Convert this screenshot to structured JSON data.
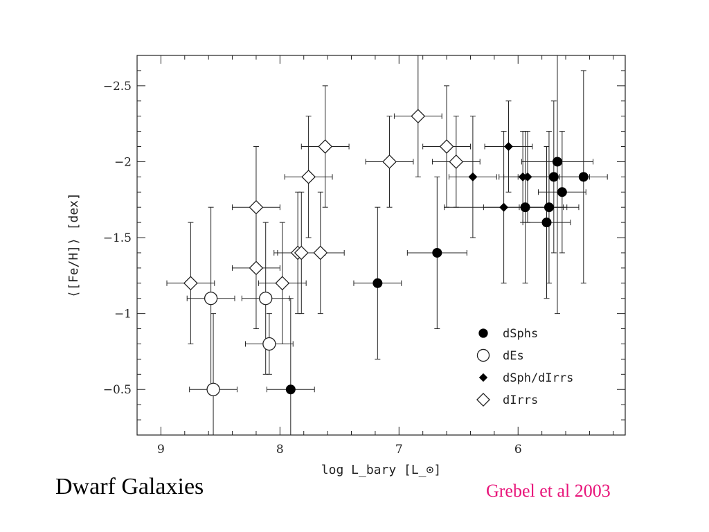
{
  "slide": {
    "title": "Dwarf Galaxies",
    "citation": "Grebel et al 2003",
    "citation_color": "#e8157a"
  },
  "chart_data": {
    "type": "scatter",
    "xlabel": "log L_bary [L_⊙]",
    "ylabel": "⟨[Fe/H]⟩ [dex]",
    "xlim": [
      9.2,
      5.1
    ],
    "ylim": [
      -0.2,
      -2.7
    ],
    "x_reversed": true,
    "y_reversed": true,
    "x_ticks": [
      9,
      8,
      7,
      6
    ],
    "x_tick_labels": [
      "9",
      "8",
      "7",
      "6"
    ],
    "y_ticks": [
      -2.5,
      -2,
      -1.5,
      -1,
      -0.5
    ],
    "y_tick_labels": [
      "−2.5",
      "−2",
      "−1.5",
      "−1",
      "−0.5"
    ],
    "grid": false,
    "legend_position": "bottom-right",
    "series": [
      {
        "name": "dSphs",
        "marker": "filled-circle",
        "points": [
          {
            "x": 7.91,
            "y": -0.5,
            "xerr": 0.2,
            "yerr_low": 0.6,
            "yerr_high": 0.6
          },
          {
            "x": 7.18,
            "y": -1.2,
            "xerr": 0.2,
            "yerr_low": 0.5,
            "yerr_high": 0.5
          },
          {
            "x": 6.68,
            "y": -1.4,
            "xerr": 0.25,
            "yerr_low": 0.5,
            "yerr_high": 0.5
          },
          {
            "x": 5.94,
            "y": -1.7,
            "xerr": 0.35,
            "yerr_low": 0.5,
            "yerr_high": 0.5
          },
          {
            "x": 5.76,
            "y": -1.6,
            "xerr": 0.2,
            "yerr_low": 0.5,
            "yerr_high": 0.5
          },
          {
            "x": 5.74,
            "y": -1.7,
            "xerr": 0.25,
            "yerr_low": 0.5,
            "yerr_high": 0.5
          },
          {
            "x": 5.7,
            "y": -1.9,
            "xerr": 0.3,
            "yerr_low": 0.5,
            "yerr_high": 0.5
          },
          {
            "x": 5.67,
            "y": -2.0,
            "xerr": 0.3,
            "yerr_low": 1.0,
            "yerr_high": 1.0
          },
          {
            "x": 5.63,
            "y": -1.8,
            "xerr": 0.2,
            "yerr_low": 0.4,
            "yerr_high": 0.4
          },
          {
            "x": 5.45,
            "y": -1.9,
            "xerr": 0.2,
            "yerr_low": 0.7,
            "yerr_high": 0.7
          }
        ]
      },
      {
        "name": "dEs",
        "marker": "open-circle",
        "points": [
          {
            "x": 8.58,
            "y": -1.1,
            "xerr": 0.2,
            "yerr_low": 0.6,
            "yerr_high": 0.6
          },
          {
            "x": 8.56,
            "y": -0.5,
            "xerr": 0.2,
            "yerr_low": 0.5,
            "yerr_high": 0.5
          },
          {
            "x": 8.12,
            "y": -1.1,
            "xerr": 0.2,
            "yerr_low": 0.5,
            "yerr_high": 0.5
          },
          {
            "x": 8.09,
            "y": -0.8,
            "xerr": 0.2,
            "yerr_low": 0.2,
            "yerr_high": 0.2
          }
        ]
      },
      {
        "name": "dSph/dIrrs",
        "marker": "filled-diamond",
        "points": [
          {
            "x": 6.38,
            "y": -1.9,
            "xerr": 0.2,
            "yerr_low": 0.4,
            "yerr_high": 0.4
          },
          {
            "x": 6.12,
            "y": -1.7,
            "xerr": 0.5,
            "yerr_low": 0.5,
            "yerr_high": 0.5
          },
          {
            "x": 6.08,
            "y": -2.1,
            "xerr": 0.2,
            "yerr_low": 0.3,
            "yerr_high": 0.3
          },
          {
            "x": 5.96,
            "y": -1.9,
            "xerr": 0.2,
            "yerr_low": 0.3,
            "yerr_high": 0.3
          },
          {
            "x": 5.92,
            "y": -1.9,
            "xerr": 0.2,
            "yerr_low": 0.3,
            "yerr_high": 0.3
          }
        ]
      },
      {
        "name": "dIrrs",
        "marker": "open-diamond",
        "points": [
          {
            "x": 8.75,
            "y": -1.2,
            "xerr": 0.2,
            "yerr_low": 0.4,
            "yerr_high": 0.4
          },
          {
            "x": 8.2,
            "y": -1.7,
            "xerr": 0.2,
            "yerr_low": 0.4,
            "yerr_high": 0.4
          },
          {
            "x": 8.2,
            "y": -1.3,
            "xerr": 0.2,
            "yerr_low": 0.4,
            "yerr_high": 0.4
          },
          {
            "x": 7.98,
            "y": -1.2,
            "xerr": 0.2,
            "yerr_low": 0.4,
            "yerr_high": 0.4
          },
          {
            "x": 7.85,
            "y": -1.4,
            "xerr": 0.2,
            "yerr_low": 0.4,
            "yerr_high": 0.4
          },
          {
            "x": 7.82,
            "y": -1.4,
            "xerr": 0.2,
            "yerr_low": 0.4,
            "yerr_high": 0.4
          },
          {
            "x": 7.76,
            "y": -1.9,
            "xerr": 0.2,
            "yerr_low": 0.4,
            "yerr_high": 0.4
          },
          {
            "x": 7.66,
            "y": -1.4,
            "xerr": 0.2,
            "yerr_low": 0.4,
            "yerr_high": 0.4
          },
          {
            "x": 7.62,
            "y": -2.1,
            "xerr": 0.2,
            "yerr_low": 0.4,
            "yerr_high": 0.4
          },
          {
            "x": 7.08,
            "y": -2.0,
            "xerr": 0.2,
            "yerr_low": 0.3,
            "yerr_high": 0.3
          },
          {
            "x": 6.84,
            "y": -2.3,
            "xerr": 0.2,
            "yerr_low": 0.4,
            "yerr_high": 0.4
          },
          {
            "x": 6.6,
            "y": -2.1,
            "xerr": 0.2,
            "yerr_low": 0.4,
            "yerr_high": 0.4
          },
          {
            "x": 6.52,
            "y": -2.0,
            "xerr": 0.2,
            "yerr_low": 0.3,
            "yerr_high": 0.3
          }
        ]
      }
    ]
  }
}
